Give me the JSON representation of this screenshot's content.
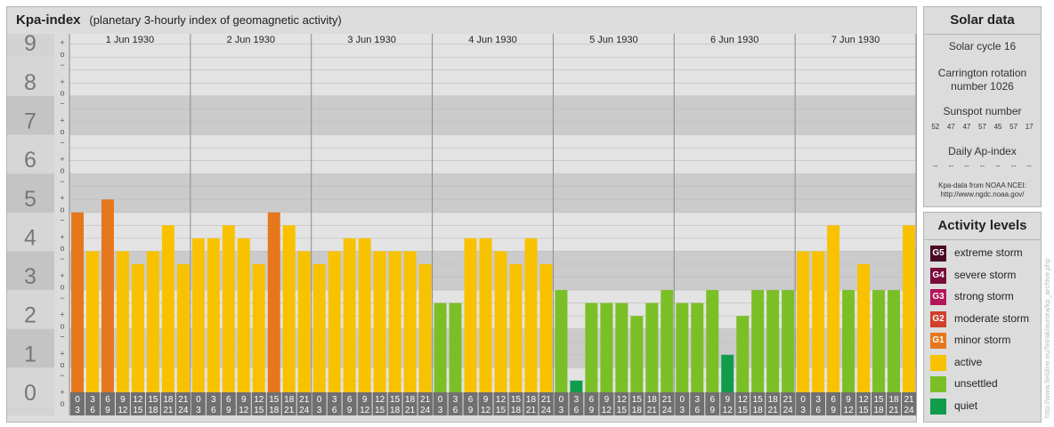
{
  "main": {
    "title": "Kpa-index",
    "subtitle": "(planetary 3-hourly index of geomagnetic activity)"
  },
  "chart_data": {
    "type": "bar",
    "ylim": [
      0,
      9
    ],
    "y_ticks": [
      "0",
      "1",
      "2",
      "3",
      "4",
      "5",
      "6",
      "7",
      "8",
      "9"
    ],
    "minor_tick_labels": [
      "+",
      "o",
      "−"
    ],
    "days": [
      "1 Jun 1930",
      "2 Jun 1930",
      "3 Jun 1930",
      "4 Jun 1930",
      "5 Jun 1930",
      "6 Jun 1930",
      "7 Jun 1930"
    ],
    "interval_labels": [
      [
        "0",
        "3"
      ],
      [
        "3",
        "6"
      ],
      [
        "6",
        "9"
      ],
      [
        "9",
        "12"
      ],
      [
        "12",
        "15"
      ],
      [
        "15",
        "18"
      ],
      [
        "18",
        "21"
      ],
      [
        "21",
        "24"
      ]
    ],
    "values": [
      [
        5,
        4,
        5.333,
        4,
        3.667,
        4,
        4.667,
        3.667
      ],
      [
        4.333,
        4.333,
        4.667,
        4.333,
        3.667,
        5,
        4.667,
        4
      ],
      [
        3.667,
        4,
        4.333,
        4.333,
        4,
        4,
        4,
        3.667
      ],
      [
        2.667,
        2.667,
        4.333,
        4.333,
        4,
        3.667,
        4.333,
        3.667
      ],
      [
        3,
        0.667,
        2.667,
        2.667,
        2.667,
        2.333,
        2.667,
        3
      ],
      [
        2.667,
        2.667,
        3,
        1.333,
        2.333,
        3,
        3,
        3
      ],
      [
        4,
        4,
        4.667,
        3,
        3.667,
        3,
        3,
        4.667
      ]
    ],
    "colors": {
      "quiet": "#119c4c",
      "unsettled": "#7bbf27",
      "active": "#f8c200",
      "minor_storm": "#e6771d"
    },
    "grid": true
  },
  "solar": {
    "title": "Solar data",
    "cycle": "Solar cycle 16",
    "carrington_1": "Carrington rotation",
    "carrington_2": "number 1026",
    "sunspot_title": "Sunspot number",
    "sunspots": [
      "52",
      "47",
      "47",
      "57",
      "45",
      "57",
      "17"
    ],
    "ap_title": "Daily Ap-index",
    "ap_values": [
      "--",
      "--",
      "--",
      "--",
      "--",
      "--",
      "--"
    ],
    "credit_1": "Kpa-data from NOAA NCEI:",
    "credit_2": "http://www.ngdc.noaa.gov/"
  },
  "activity": {
    "title": "Activity levels",
    "levels": [
      {
        "code": "G5",
        "label": "extreme storm",
        "color": "#4a0a25"
      },
      {
        "code": "G4",
        "label": "severe storm",
        "color": "#7c0a3c"
      },
      {
        "code": "G3",
        "label": "strong storm",
        "color": "#b3155a"
      },
      {
        "code": "G2",
        "label": "moderate storm",
        "color": "#d0402a"
      },
      {
        "code": "G1",
        "label": "minor storm",
        "color": "#e6771d"
      },
      {
        "code": "",
        "label": "active",
        "color": "#f8c200"
      },
      {
        "code": "",
        "label": "unsettled",
        "color": "#7bbf27"
      },
      {
        "code": "",
        "label": "quiet",
        "color": "#119c4c"
      }
    ]
  },
  "watermark": "http://www.fieldine.eu/fetrak/aurora/kp_archive.php"
}
